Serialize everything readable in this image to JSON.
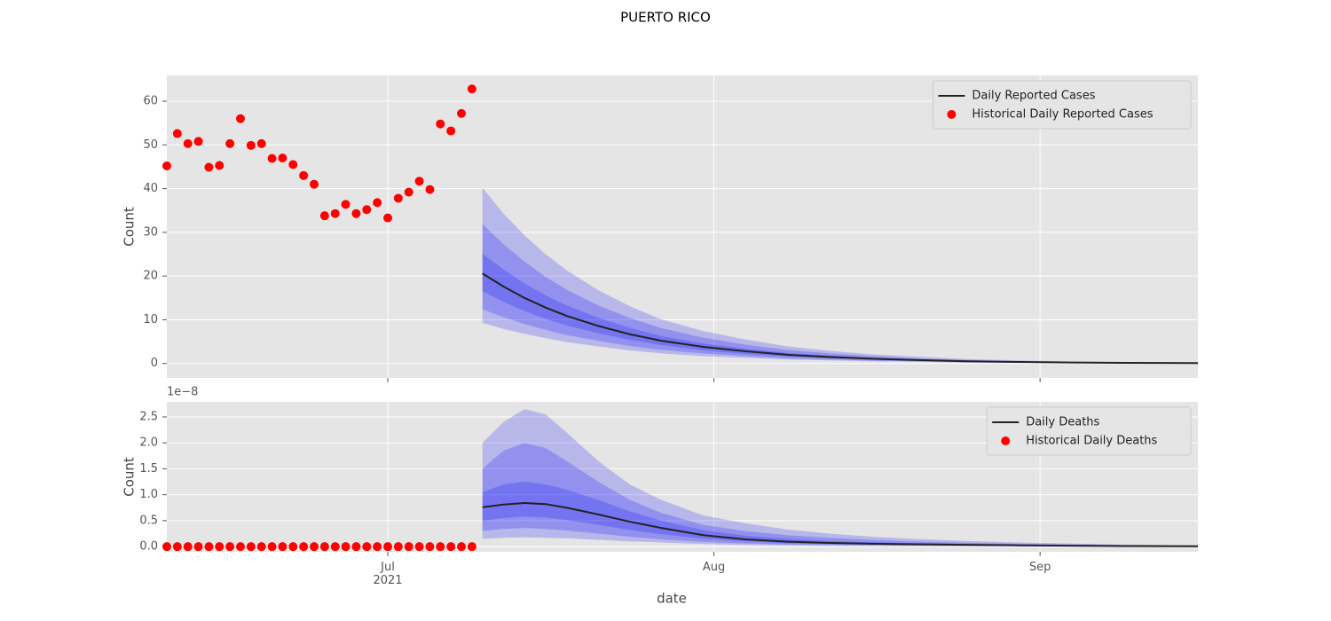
{
  "title": "PUERTO RICO",
  "chart_data": [
    {
      "type": "line",
      "ylabel": "Count",
      "xlim": [
        -21,
        77
      ],
      "ylim": [
        -3.3,
        65.9
      ],
      "yticks": [
        0,
        10,
        20,
        30,
        40,
        50,
        60
      ],
      "grid": true,
      "legend": "upper right",
      "band_color": "#0000ff",
      "bands_x": [
        9,
        11,
        13,
        15,
        17,
        20,
        23,
        26,
        30,
        34,
        38,
        42,
        46,
        50,
        55,
        60,
        65,
        70,
        77
      ],
      "bands": [
        {
          "lower": [
            9.3,
            7.9,
            6.8,
            5.8,
            4.9,
            3.9,
            3.0,
            2.3,
            1.7,
            1.3,
            0.9,
            0.7,
            0.5,
            0.4,
            0.2,
            0.16,
            0.1,
            0.07,
            0.04
          ],
          "upper": [
            40.2,
            34.3,
            29.3,
            25.0,
            21.3,
            16.8,
            13.1,
            10.1,
            7.4,
            5.5,
            3.9,
            2.9,
            2.1,
            1.6,
            1.0,
            0.7,
            0.45,
            0.29,
            0.18
          ]
        },
        {
          "lower": [
            12.4,
            10.6,
            9.0,
            7.7,
            6.5,
            5.2,
            4.0,
            3.1,
            2.3,
            1.7,
            1.2,
            0.9,
            0.66,
            0.48,
            0.3,
            0.21,
            0.14,
            0.09,
            0.05
          ],
          "upper": [
            31.9,
            27.3,
            23.3,
            19.8,
            16.9,
            13.3,
            10.4,
            8.1,
            5.9,
            4.3,
            3.1,
            2.3,
            1.7,
            1.2,
            0.8,
            0.54,
            0.36,
            0.23,
            0.14
          ]
        },
        {
          "lower": [
            16.5,
            14.1,
            12.0,
            10.2,
            8.7,
            6.9,
            5.4,
            4.2,
            3.0,
            2.2,
            1.6,
            1.2,
            0.88,
            0.64,
            0.4,
            0.28,
            0.18,
            0.12,
            0.07
          ],
          "upper": [
            25.1,
            21.5,
            18.3,
            15.6,
            13.3,
            10.5,
            8.2,
            6.3,
            4.6,
            3.4,
            2.4,
            1.8,
            1.3,
            1.0,
            0.6,
            0.43,
            0.28,
            0.18,
            0.11
          ]
        }
      ],
      "series": [
        {
          "name": "Daily Reported Cases",
          "kind": "line",
          "color": "#222222",
          "x": [
            9,
            11,
            13,
            15,
            17,
            20,
            23,
            26,
            30,
            34,
            38,
            42,
            46,
            50,
            55,
            60,
            65,
            70,
            77
          ],
          "values": [
            20.6,
            17.6,
            15.0,
            12.8,
            10.9,
            8.6,
            6.7,
            5.2,
            3.8,
            2.8,
            2.0,
            1.5,
            1.1,
            0.8,
            0.5,
            0.35,
            0.23,
            0.15,
            0.09
          ]
        },
        {
          "name": "Historical Daily Reported Cases",
          "kind": "scatter",
          "color": "#ff0000",
          "x": [
            -21,
            -20,
            -19,
            -18,
            -17,
            -16,
            -15,
            -14,
            -13,
            -12,
            -11,
            -10,
            -9,
            -8,
            -7,
            -6,
            -5,
            -4,
            -3,
            -2,
            -1,
            0,
            1,
            2,
            3,
            4,
            5,
            6,
            7,
            8
          ],
          "values": [
            45.2,
            52.6,
            50.3,
            50.8,
            44.9,
            45.3,
            50.3,
            56.0,
            49.9,
            50.3,
            46.9,
            47.0,
            45.5,
            43.0,
            41.0,
            33.8,
            34.3,
            36.4,
            34.3,
            35.2,
            36.8,
            33.3,
            37.8,
            39.2,
            41.7,
            39.8,
            54.8,
            53.2,
            57.2,
            62.8
          ]
        }
      ]
    },
    {
      "type": "line",
      "ylabel": "Count",
      "xlabel": "date",
      "offset_text": "1e−8",
      "xlim": [
        -21,
        77
      ],
      "ylim": [
        -0.1,
        2.79
      ],
      "xticks": [
        {
          "value": 0,
          "label": "Jul\n2021"
        },
        {
          "value": 31,
          "label": "Aug"
        },
        {
          "value": 62,
          "label": "Sep"
        }
      ],
      "yticks": [
        {
          "value": 0,
          "label": "0.0"
        },
        {
          "value": 0.5,
          "label": "0.5"
        },
        {
          "value": 1,
          "label": "1.0"
        },
        {
          "value": 1.5,
          "label": "1.5"
        },
        {
          "value": 2,
          "label": "2.0"
        },
        {
          "value": 2.5,
          "label": "2.5"
        }
      ],
      "grid": true,
      "legend": "upper right",
      "band_color": "#0000ff",
      "bands_x": [
        9,
        11,
        13,
        15,
        17,
        20,
        23,
        26,
        30,
        34,
        38,
        42,
        46,
        50,
        55,
        60,
        65,
        70,
        77
      ],
      "bands": [
        {
          "lower": [
            0.15,
            0.17,
            0.18,
            0.17,
            0.16,
            0.13,
            0.1,
            0.08,
            0.05,
            0.03,
            0.02,
            0.015,
            0.012,
            0.01,
            0.007,
            0.005,
            0.004,
            0.003,
            0.002
          ],
          "upper": [
            2.0,
            2.4,
            2.65,
            2.55,
            2.2,
            1.65,
            1.2,
            0.9,
            0.6,
            0.45,
            0.33,
            0.25,
            0.19,
            0.15,
            0.11,
            0.08,
            0.06,
            0.04,
            0.025
          ]
        },
        {
          "lower": [
            0.3,
            0.34,
            0.36,
            0.34,
            0.31,
            0.25,
            0.19,
            0.14,
            0.09,
            0.06,
            0.04,
            0.03,
            0.024,
            0.019,
            0.014,
            0.01,
            0.008,
            0.006,
            0.004
          ],
          "upper": [
            1.5,
            1.85,
            2.0,
            1.9,
            1.65,
            1.25,
            0.9,
            0.65,
            0.42,
            0.3,
            0.22,
            0.17,
            0.13,
            0.1,
            0.075,
            0.055,
            0.04,
            0.028,
            0.017
          ]
        },
        {
          "lower": [
            0.5,
            0.55,
            0.58,
            0.56,
            0.51,
            0.42,
            0.32,
            0.24,
            0.15,
            0.1,
            0.065,
            0.048,
            0.038,
            0.031,
            0.024,
            0.017,
            0.012,
            0.008,
            0.005
          ],
          "upper": [
            1.05,
            1.2,
            1.25,
            1.2,
            1.1,
            0.9,
            0.68,
            0.5,
            0.32,
            0.21,
            0.15,
            0.11,
            0.085,
            0.068,
            0.052,
            0.037,
            0.027,
            0.018,
            0.011
          ]
        }
      ],
      "series": [
        {
          "name": "Daily Deaths",
          "kind": "line",
          "color": "#222222",
          "x": [
            9,
            11,
            13,
            15,
            17,
            20,
            23,
            26,
            30,
            34,
            38,
            42,
            46,
            50,
            55,
            60,
            65,
            70,
            77
          ],
          "values": [
            0.76,
            0.81,
            0.84,
            0.82,
            0.75,
            0.62,
            0.48,
            0.36,
            0.22,
            0.14,
            0.095,
            0.07,
            0.055,
            0.045,
            0.035,
            0.025,
            0.018,
            0.012,
            0.007
          ]
        },
        {
          "name": "Historical Daily Deaths",
          "kind": "scatter",
          "color": "#ff0000",
          "x": [
            -21,
            -20,
            -19,
            -18,
            -17,
            -16,
            -15,
            -14,
            -13,
            -12,
            -11,
            -10,
            -9,
            -8,
            -7,
            -6,
            -5,
            -4,
            -3,
            -2,
            -1,
            0,
            1,
            2,
            3,
            4,
            5,
            6,
            7,
            8
          ],
          "values": [
            0,
            0,
            0,
            0,
            0,
            0,
            0,
            0,
            0,
            0,
            0,
            0,
            0,
            0,
            0,
            0,
            0,
            0,
            0,
            0,
            0,
            0,
            0,
            0,
            0,
            0,
            0,
            0,
            0,
            0
          ]
        }
      ]
    }
  ]
}
